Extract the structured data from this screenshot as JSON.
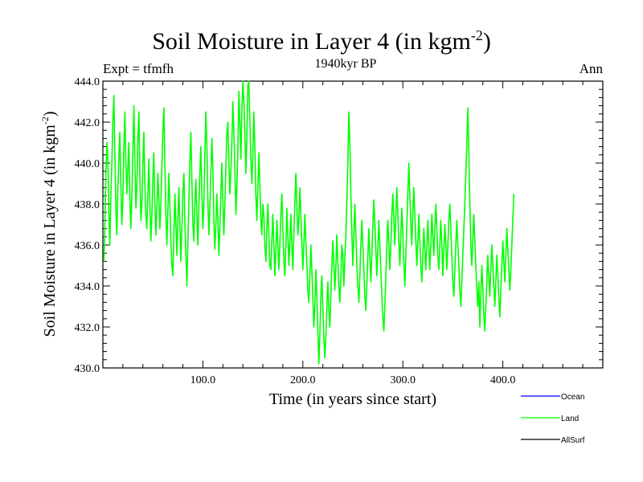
{
  "chart_data": {
    "type": "line",
    "title": "Soil Moisture in Layer 4 (in kgm",
    "title_sup": "-2",
    "title_close": ")",
    "subtitle_left": "Expt = tfmfh",
    "subtitle_center": "1940kyr BP",
    "subtitle_right": "Ann",
    "xlabel": "Time (in years since start)",
    "ylabel": "Soil Moisture in Layer 4 (in kgm",
    "ylabel_sup": "-2",
    "ylabel_close": ")",
    "xlim": [
      0,
      500
    ],
    "ylim": [
      430,
      444
    ],
    "x_ticks": [
      100,
      200,
      300,
      400
    ],
    "x_tick_labels": [
      "100.0",
      "200.0",
      "300.0",
      "400.0"
    ],
    "y_ticks": [
      430,
      432,
      434,
      436,
      438,
      440,
      442,
      444
    ],
    "y_tick_labels": [
      "430.0",
      "432.0",
      "434.0",
      "436.0",
      "438.0",
      "440.0",
      "442.0",
      "444.0"
    ],
    "legend": [
      {
        "name": "Ocean",
        "color": "#0000ff"
      },
      {
        "name": "Land",
        "color": "#00ff00"
      },
      {
        "name": "AllSurf",
        "color": "#000000"
      }
    ],
    "series": [
      {
        "name": "Land",
        "color": "#00ff00",
        "x_start": 1,
        "x_step": 1,
        "values": [
          435.2,
          436.8,
          439.5,
          441.0,
          440.2,
          437.5,
          436.0,
          438.5,
          440.0,
          442.0,
          443.3,
          440.5,
          437.8,
          436.5,
          438.8,
          440.2,
          441.5,
          439.0,
          437.0,
          438.2,
          440.8,
          442.5,
          440.0,
          438.5,
          439.8,
          441.0,
          438.2,
          436.8,
          438.5,
          440.5,
          442.8,
          440.2,
          437.8,
          438.8,
          441.2,
          442.5,
          439.5,
          437.2,
          438.0,
          440.0,
          441.5,
          439.0,
          437.5,
          436.8,
          438.5,
          440.2,
          438.0,
          436.2,
          437.5,
          439.2,
          440.5,
          438.0,
          436.5,
          437.8,
          439.5,
          438.2,
          436.8,
          438.0,
          439.8,
          441.5,
          442.7,
          440.0,
          437.5,
          436.0,
          437.8,
          439.5,
          438.0,
          436.2,
          435.0,
          434.5,
          436.5,
          438.5,
          437.0,
          435.5,
          437.2,
          438.8,
          437.0,
          435.2,
          436.8,
          438.5,
          439.5,
          437.2,
          435.5,
          434.0,
          436.0,
          438.2,
          440.0,
          441.5,
          439.2,
          437.0,
          436.2,
          438.0,
          439.2,
          437.5,
          436.0,
          437.8,
          439.5,
          440.8,
          438.5,
          436.8,
          438.0,
          440.5,
          442.5,
          440.8,
          438.2,
          436.5,
          437.8,
          439.5,
          441.2,
          439.8,
          437.2,
          435.8,
          437.0,
          438.5,
          437.2,
          435.5,
          436.8,
          438.5,
          440.0,
          438.2,
          436.5,
          438.0,
          439.8,
          441.5,
          442.0,
          440.2,
          438.5,
          439.5,
          441.0,
          443.0,
          441.5,
          439.8,
          437.5,
          438.8,
          440.5,
          443.5,
          442.0,
          440.2,
          442.5,
          444.0,
          443.0,
          441.5,
          439.5,
          441.2,
          443.8,
          444.0,
          442.0,
          440.2,
          439.0,
          440.5,
          442.5,
          440.8,
          438.5,
          437.2,
          438.8,
          440.5,
          439.0,
          437.2,
          436.5,
          438.0,
          437.5,
          436.0,
          435.2,
          436.8,
          438.0,
          436.5,
          435.0,
          434.8,
          436.2,
          437.5,
          436.0,
          434.5,
          435.8,
          437.2,
          436.0,
          434.8,
          436.0,
          437.5,
          438.5,
          436.8,
          435.2,
          434.5,
          436.0,
          437.8,
          436.5,
          435.0,
          436.2,
          437.5,
          436.0,
          434.8,
          436.5,
          438.0,
          439.5,
          438.0,
          436.5,
          437.2,
          438.8,
          437.5,
          436.0,
          434.8,
          436.0,
          437.5,
          436.2,
          435.0,
          433.8,
          433.2,
          434.5,
          436.0,
          434.8,
          433.5,
          432.0,
          433.0,
          434.8,
          433.5,
          431.8,
          430.2,
          431.5,
          433.5,
          434.5,
          433.0,
          431.5,
          430.5,
          431.5,
          433.0,
          434.2,
          433.0,
          432.0,
          433.5,
          435.0,
          436.2,
          435.0,
          433.8,
          435.0,
          436.5,
          435.2,
          434.0,
          433.2,
          434.5,
          436.0,
          435.5,
          434.0,
          435.2,
          436.5,
          438.0,
          440.0,
          442.5,
          441.0,
          438.5,
          436.5,
          435.0,
          436.5,
          438.0,
          436.5,
          435.0,
          434.0,
          433.2,
          434.5,
          436.0,
          437.2,
          436.0,
          434.8,
          433.5,
          432.8,
          434.0,
          435.5,
          436.8,
          435.5,
          434.2,
          435.5,
          437.0,
          438.2,
          437.0,
          435.8,
          434.5,
          435.8,
          437.2,
          436.0,
          434.8,
          433.5,
          432.5,
          431.8,
          433.0,
          434.5,
          436.0,
          437.2,
          436.0,
          434.8,
          436.0,
          437.5,
          438.5,
          437.2,
          436.0,
          437.5,
          438.8,
          437.5,
          436.2,
          435.0,
          436.5,
          437.8,
          436.5,
          435.2,
          434.0,
          435.5,
          437.0,
          438.5,
          440.0,
          438.5,
          437.0,
          436.0,
          437.5,
          438.8,
          437.5,
          436.2,
          435.0,
          436.2,
          437.5,
          436.2,
          435.0,
          434.2,
          435.5,
          436.8,
          435.8,
          434.8,
          436.0,
          437.2,
          436.0,
          434.8,
          436.0,
          437.5,
          436.5,
          435.5,
          436.8,
          438.0,
          436.8,
          435.5,
          434.8,
          436.0,
          437.2,
          436.0,
          434.5,
          435.8,
          437.0,
          436.0,
          434.8,
          436.0,
          437.2,
          438.0,
          436.8,
          435.5,
          434.2,
          433.5,
          434.8,
          436.0,
          437.2,
          436.0,
          435.0,
          433.8,
          433.0,
          434.2,
          435.5,
          436.8,
          438.0,
          439.5,
          441.0,
          442.7,
          440.5,
          438.2,
          436.0,
          435.0,
          436.2,
          437.5,
          436.2,
          435.0,
          433.8,
          433.0,
          434.2,
          432.0,
          433.5,
          435.0,
          434.0,
          432.5,
          431.8,
          433.0,
          434.2,
          435.5,
          434.5,
          433.5,
          434.8,
          436.0,
          435.0,
          434.0,
          433.0,
          434.2,
          435.5,
          434.5,
          433.5,
          432.5,
          433.8,
          435.0,
          436.2,
          435.2,
          434.2,
          435.5,
          436.8,
          435.8,
          434.8,
          433.8,
          434.8,
          436.0,
          437.2,
          438.5
        ]
      }
    ]
  }
}
